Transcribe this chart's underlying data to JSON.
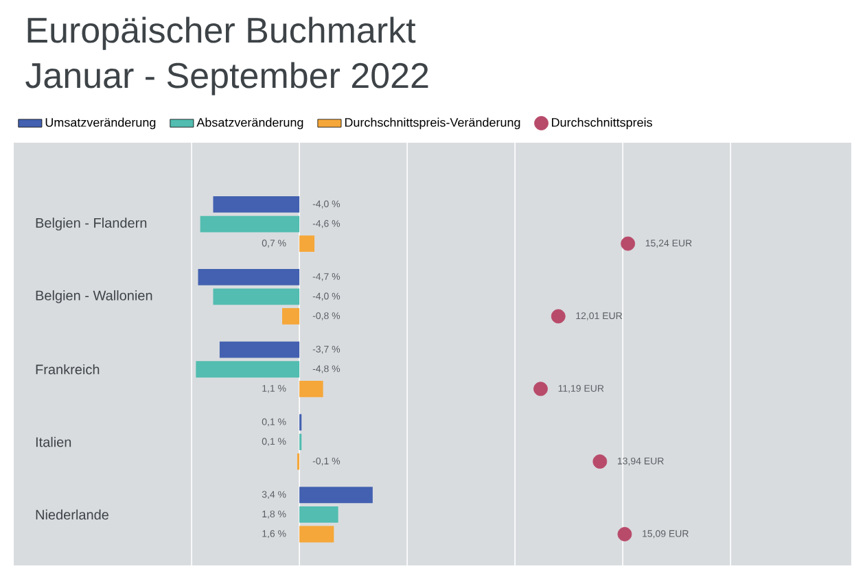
{
  "chart_data": {
    "type": "bar",
    "orientation": "horizontal",
    "title": "Europäischer Buchmarkt\nJanuar - September 2022",
    "categories": [
      "Belgien - Flandern",
      "Belgien - Wallonien",
      "Frankreich",
      "Italien",
      "Niederlande"
    ],
    "series": [
      {
        "name": "Umsatzveränderung",
        "color": "#4361b0",
        "values": [
          -4.0,
          -4.7,
          -3.7,
          0.1,
          3.4
        ],
        "value_labels": [
          "-4,0 %",
          "-4,7 %",
          "-3,7 %",
          "0,1 %",
          "3,4 %"
        ]
      },
      {
        "name": "Absatzveränderung",
        "color": "#52bdb0",
        "values": [
          -4.6,
          -4.0,
          -4.8,
          0.1,
          1.8
        ],
        "value_labels": [
          "-4,6 %",
          "-4,0 %",
          "-4,8 %",
          "0,1 %",
          "1,8 %"
        ]
      },
      {
        "name": "Durchschnittspreis-Veränderung",
        "color": "#f5a73a",
        "values": [
          0.7,
          -0.8,
          1.1,
          -0.1,
          1.6
        ],
        "value_labels": [
          "0,7 %",
          "-0,8 %",
          "1,1 %",
          "-0,1 %",
          "1,6 %"
        ]
      },
      {
        "name": "Durchschnittspreis",
        "type": "scatter",
        "color": "#b84a6a",
        "values": [
          15.24,
          12.01,
          11.19,
          13.94,
          15.09
        ],
        "value_labels": [
          "15,24 EUR",
          "12,01 EUR",
          "11,19 EUR",
          "13,94 EUR",
          "15,09 EUR"
        ]
      }
    ],
    "xlim": [
      -13.25,
      25.6
    ],
    "xticks": [
      {
        "value": -5,
        "label": null
      },
      {
        "value": 0,
        "label": null
      },
      {
        "value": 5,
        "label": null
      },
      {
        "value": 10,
        "label": null
      },
      {
        "value": 15,
        "label": null
      },
      {
        "value": 20,
        "label": null
      }
    ],
    "grid": "x",
    "tick_labels": "y",
    "legend": "top left"
  }
}
